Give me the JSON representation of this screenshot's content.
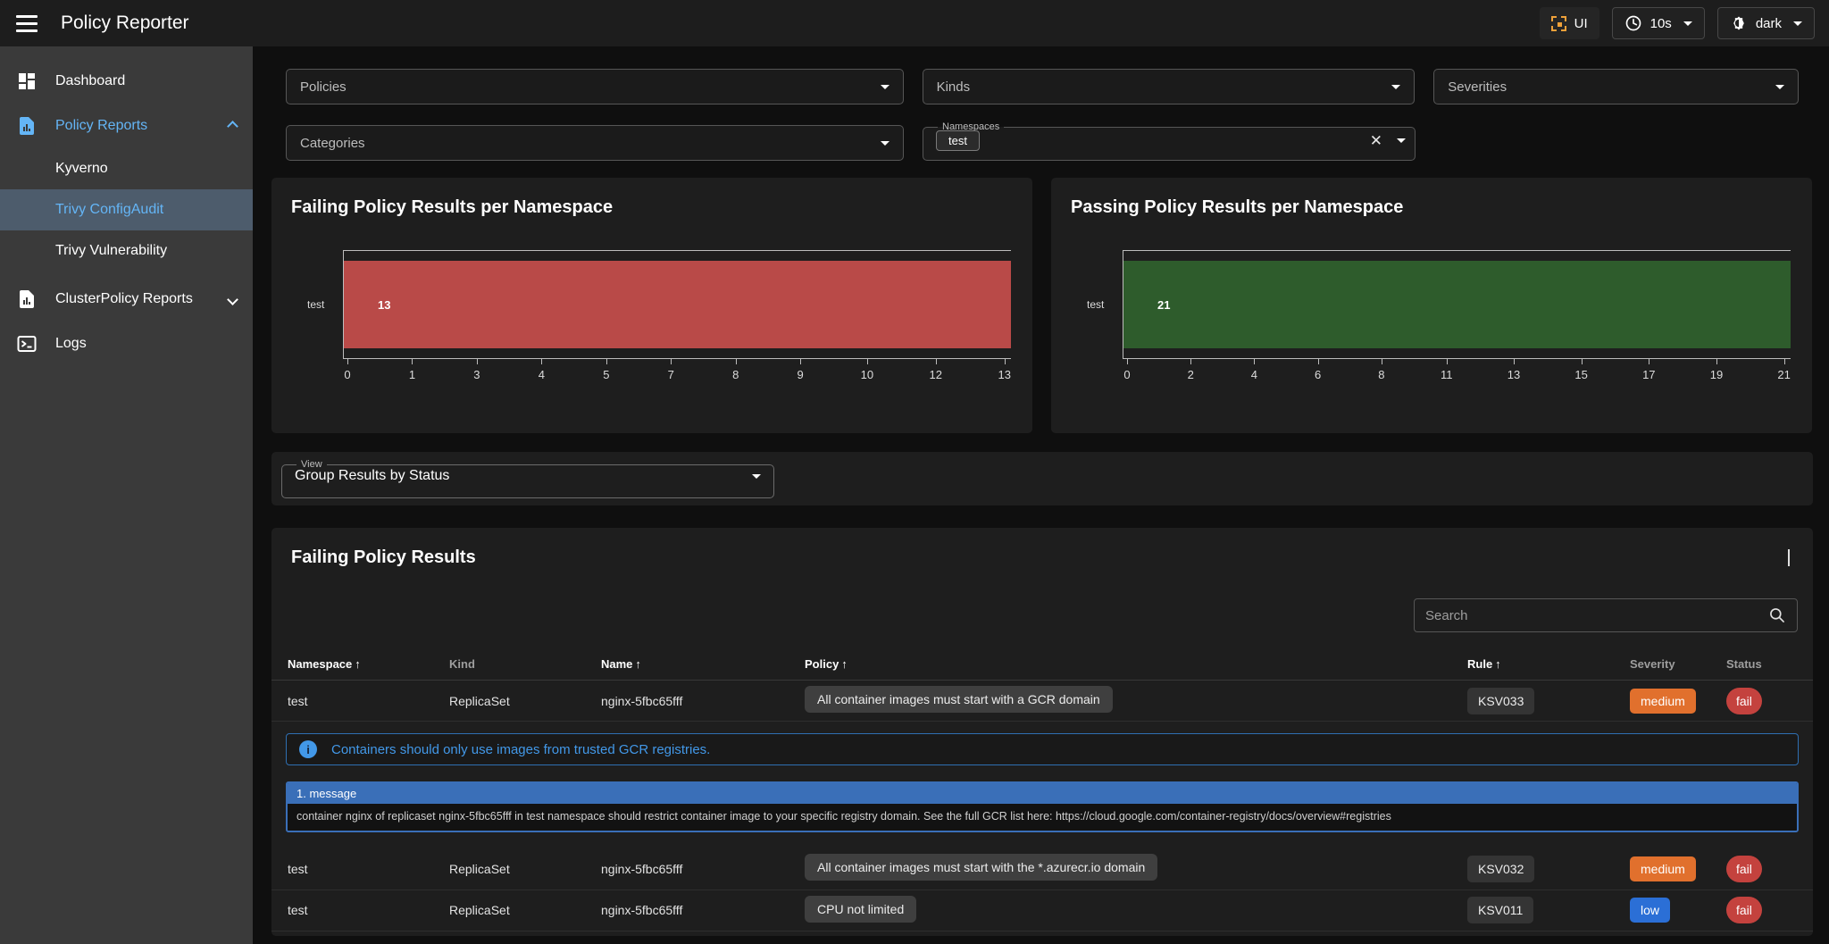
{
  "topbar": {
    "title": "Policy Reporter",
    "ui_button_label": "UI",
    "refresh_value": "10s",
    "theme_value": "dark"
  },
  "sidebar": {
    "items": [
      {
        "label": "Dashboard"
      },
      {
        "label": "Policy Reports"
      },
      {
        "label": "Kyverno"
      },
      {
        "label": "Trivy ConfigAudit"
      },
      {
        "label": "Trivy Vulnerability"
      },
      {
        "label": "ClusterPolicy Reports"
      },
      {
        "label": "Logs"
      }
    ]
  },
  "filters": {
    "policies_label": "Policies",
    "kinds_label": "Kinds",
    "severities_label": "Severities",
    "categories_label": "Categories",
    "namespaces_label": "Namespaces",
    "namespaces_selected_chip": "test"
  },
  "view_select": {
    "label": "View",
    "value": "Group Results by Status"
  },
  "chart_data": [
    {
      "type": "bar",
      "orientation": "horizontal",
      "title": "Failing Policy Results per Namespace",
      "categories": [
        "test"
      ],
      "values": [
        13
      ],
      "xlim": [
        0,
        13
      ],
      "xticks": [
        0,
        1,
        3,
        4,
        5,
        7,
        8,
        9,
        10,
        12,
        13
      ],
      "bar_color": "#b94a48",
      "grid": false,
      "legend": false
    },
    {
      "type": "bar",
      "orientation": "horizontal",
      "title": "Passing Policy Results per Namespace",
      "categories": [
        "test"
      ],
      "values": [
        21
      ],
      "xlim": [
        0,
        21
      ],
      "xticks": [
        0,
        2,
        4,
        6,
        8,
        11,
        13,
        15,
        17,
        19,
        21
      ],
      "bar_color": "#2e5c2c",
      "grid": false,
      "legend": false
    }
  ],
  "results": {
    "title": "Failing Policy Results",
    "search_placeholder": "Search",
    "sort_arrow": "↑",
    "columns": [
      {
        "label": "Namespace",
        "sorted": true
      },
      {
        "label": "Kind",
        "sorted": false
      },
      {
        "label": "Name",
        "sorted": true
      },
      {
        "label": "Policy",
        "sorted": true
      },
      {
        "label": "Rule",
        "sorted": true
      },
      {
        "label": "Severity",
        "sorted": false
      },
      {
        "label": "Status",
        "sorted": false
      }
    ],
    "rows": [
      {
        "namespace": "test",
        "kind": "ReplicaSet",
        "name": "nginx-5fbc65fff",
        "policy": "All container images must start with a GCR domain",
        "rule": "KSV033",
        "severity": "medium",
        "status": "fail"
      },
      {
        "namespace": "test",
        "kind": "ReplicaSet",
        "name": "nginx-5fbc65fff",
        "policy": "All container images must start with the *.azurecr.io domain",
        "rule": "KSV032",
        "severity": "medium",
        "status": "fail"
      },
      {
        "namespace": "test",
        "kind": "ReplicaSet",
        "name": "nginx-5fbc65fff",
        "policy": "CPU not limited",
        "rule": "KSV011",
        "severity": "low",
        "status": "fail"
      }
    ],
    "expanded_detail": {
      "info_text": "Containers should only use images from trusted GCR registries.",
      "message_header": "1. message",
      "message_body": "container nginx of replicaset nginx-5fbc65fff in test namespace should restrict container image to your specific registry domain. See the full GCR list here: https://cloud.google.com/container-registry/docs/overview#registries"
    }
  },
  "colors": {
    "accent_blue": "#64b5f6",
    "severity_medium": "#e1702d",
    "severity_low": "#2b6fd6",
    "status_fail": "#c4423e",
    "bar_fail": "#b94a48",
    "bar_pass": "#2e5c2c",
    "info_blue": "#4298e8",
    "message_blue": "#3a6fb8",
    "ui_icon_orange": "#efa13a",
    "sidebar_selected_bg": "#4d5c6c"
  }
}
